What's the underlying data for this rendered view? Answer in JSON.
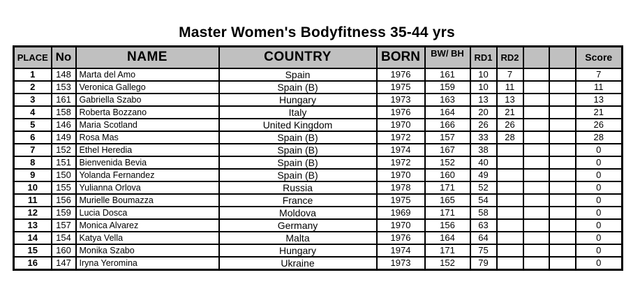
{
  "page": {
    "title": "Master Women's Bodyfitness 35-44 yrs"
  },
  "colors": {
    "page_bg": "#ffffff",
    "header_bg": "#c0c0c0",
    "grid": "#000000",
    "text": "#000000"
  },
  "table": {
    "headers": [
      {
        "key": "place",
        "label": "PLACE"
      },
      {
        "key": "no",
        "label": "No"
      },
      {
        "key": "name",
        "label": "NAME"
      },
      {
        "key": "country",
        "label": "COUNTRY"
      },
      {
        "key": "born",
        "label": "BORN"
      },
      {
        "key": "bw_bh",
        "label": "BW/ BH"
      },
      {
        "key": "rd1",
        "label": "RD1"
      },
      {
        "key": "rd2",
        "label": "RD2"
      },
      {
        "key": "col9",
        "label": ""
      },
      {
        "key": "col10",
        "label": ""
      },
      {
        "key": "score",
        "label": "Score"
      }
    ],
    "rows": [
      {
        "place": "1",
        "no": "148",
        "name": "Marta del Amo",
        "country": "Spain",
        "born": "1976",
        "bw_bh": "161",
        "rd1": "10",
        "rd2": "7",
        "col9": "",
        "col10": "",
        "score": "7"
      },
      {
        "place": "2",
        "no": "153",
        "name": "Veronica Gallego",
        "country": "Spain (B)",
        "born": "1975",
        "bw_bh": "159",
        "rd1": "10",
        "rd2": "11",
        "col9": "",
        "col10": "",
        "score": "11"
      },
      {
        "place": "3",
        "no": "161",
        "name": "Gabriella Szabo",
        "country": "Hungary",
        "born": "1973",
        "bw_bh": "163",
        "rd1": "13",
        "rd2": "13",
        "col9": "",
        "col10": "",
        "score": "13"
      },
      {
        "place": "4",
        "no": "158",
        "name": "Roberta Bozzano",
        "country": "Italy",
        "born": "1976",
        "bw_bh": "164",
        "rd1": "20",
        "rd2": "21",
        "col9": "",
        "col10": "",
        "score": "21"
      },
      {
        "place": "5",
        "no": "146",
        "name": "Maria Scotland",
        "country": "United Kingdom",
        "born": "1970",
        "bw_bh": "166",
        "rd1": "26",
        "rd2": "26",
        "col9": "",
        "col10": "",
        "score": "26"
      },
      {
        "place": "6",
        "no": "149",
        "name": "Rosa Mas",
        "country": "Spain (B)",
        "born": "1972",
        "bw_bh": "157",
        "rd1": "33",
        "rd2": "28",
        "col9": "",
        "col10": "",
        "score": "28"
      },
      {
        "place": "7",
        "no": "152",
        "name": "Ethel Heredia",
        "country": "Spain (B)",
        "born": "1974",
        "bw_bh": "167",
        "rd1": "38",
        "rd2": "",
        "col9": "",
        "col10": "",
        "score": "0"
      },
      {
        "place": "8",
        "no": "151",
        "name": "Bienvenida Bevia",
        "country": "Spain (B)",
        "born": "1972",
        "bw_bh": "152",
        "rd1": "40",
        "rd2": "",
        "col9": "",
        "col10": "",
        "score": "0"
      },
      {
        "place": "9",
        "no": "150",
        "name": "Yolanda Fernandez",
        "country": "Spain (B)",
        "born": "1970",
        "bw_bh": "160",
        "rd1": "49",
        "rd2": "",
        "col9": "",
        "col10": "",
        "score": "0"
      },
      {
        "place": "10",
        "no": "155",
        "name": "Yulianna Orlova",
        "country": "Russia",
        "born": "1978",
        "bw_bh": "171",
        "rd1": "52",
        "rd2": "",
        "col9": "",
        "col10": "",
        "score": "0"
      },
      {
        "place": "11",
        "no": "156",
        "name": "Murielle Boumazza",
        "country": "France",
        "born": "1975",
        "bw_bh": "165",
        "rd1": "54",
        "rd2": "",
        "col9": "",
        "col10": "",
        "score": "0"
      },
      {
        "place": "12",
        "no": "159",
        "name": "Lucia Dosca",
        "country": "Moldova",
        "born": "1969",
        "bw_bh": "171",
        "rd1": "58",
        "rd2": "",
        "col9": "",
        "col10": "",
        "score": "0"
      },
      {
        "place": "13",
        "no": "157",
        "name": "Monica Alvarez",
        "country": "Germany",
        "born": "1970",
        "bw_bh": "156",
        "rd1": "63",
        "rd2": "",
        "col9": "",
        "col10": "",
        "score": "0"
      },
      {
        "place": "14",
        "no": "154",
        "name": "Katya Vella",
        "country": "Malta",
        "born": "1976",
        "bw_bh": "164",
        "rd1": "64",
        "rd2": "",
        "col9": "",
        "col10": "",
        "score": "0"
      },
      {
        "place": "15",
        "no": "160",
        "name": "Monika Szabo",
        "country": "Hungary",
        "born": "1974",
        "bw_bh": "171",
        "rd1": "75",
        "rd2": "",
        "col9": "",
        "col10": "",
        "score": "0"
      },
      {
        "place": "16",
        "no": "147",
        "name": "Iryna Yeromina",
        "country": "Ukraine",
        "born": "1973",
        "bw_bh": "152",
        "rd1": "79",
        "rd2": "",
        "col9": "",
        "col10": "",
        "score": "0"
      }
    ]
  }
}
